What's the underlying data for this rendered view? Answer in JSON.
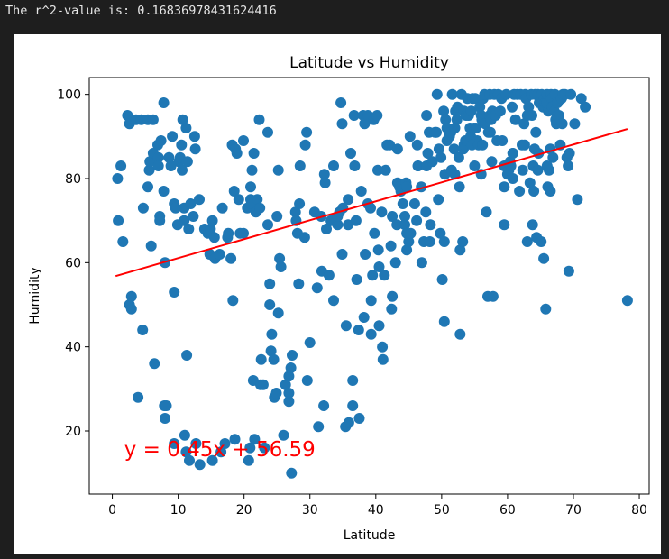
{
  "output": {
    "text": "The r^2-value is: 0.16836978431624416"
  },
  "chart_data": {
    "type": "scatter",
    "title": "Latitude vs Humidity",
    "xlabel": "Latitude",
    "ylabel": "Humidity",
    "xlim": [
      -3.5,
      81.5
    ],
    "ylim": [
      5,
      104
    ],
    "xticks": [
      0,
      10,
      20,
      30,
      40,
      50,
      60,
      70,
      80
    ],
    "yticks": [
      20,
      40,
      60,
      80,
      100
    ],
    "grid": false,
    "marker_color": "#1f77b4",
    "regression": {
      "slope": 0.45,
      "intercept": 56.59,
      "x_range": [
        0.5,
        78.2
      ],
      "color": "#ff0000",
      "equation_label": "y = 0.45x + 56.59",
      "label_anchor": [
        1.8,
        14
      ]
    },
    "points": [
      [
        0.8,
        80
      ],
      [
        0.9,
        70
      ],
      [
        1.3,
        83
      ],
      [
        1.6,
        65
      ],
      [
        2.3,
        95
      ],
      [
        2.6,
        93
      ],
      [
        2.6,
        50
      ],
      [
        2.9,
        52
      ],
      [
        2.9,
        49
      ],
      [
        3.6,
        94
      ],
      [
        3.9,
        28
      ],
      [
        4.4,
        94
      ],
      [
        4.6,
        44
      ],
      [
        4.7,
        73
      ],
      [
        5.4,
        94
      ],
      [
        5.4,
        78
      ],
      [
        5.6,
        82
      ],
      [
        5.7,
        84
      ],
      [
        5.9,
        64
      ],
      [
        6.2,
        94
      ],
      [
        6.2,
        86
      ],
      [
        6.4,
        36
      ],
      [
        6.9,
        88
      ],
      [
        7.0,
        85
      ],
      [
        7.0,
        83
      ],
      [
        7.2,
        71
      ],
      [
        7.2,
        70
      ],
      [
        7.4,
        89
      ],
      [
        7.8,
        98
      ],
      [
        7.8,
        77
      ],
      [
        7.9,
        26
      ],
      [
        8.0,
        23
      ],
      [
        8.0,
        60
      ],
      [
        8.2,
        26
      ],
      [
        8.6,
        85
      ],
      [
        8.9,
        83
      ],
      [
        9.1,
        90
      ],
      [
        9.4,
        17
      ],
      [
        9.4,
        74
      ],
      [
        9.4,
        53
      ],
      [
        9.6,
        73
      ],
      [
        9.9,
        69
      ],
      [
        10.1,
        84
      ],
      [
        10.3,
        85
      ],
      [
        10.5,
        88
      ],
      [
        10.6,
        82
      ],
      [
        10.7,
        94
      ],
      [
        10.9,
        73
      ],
      [
        10.9,
        70
      ],
      [
        11.0,
        19
      ],
      [
        11.2,
        92
      ],
      [
        11.2,
        15
      ],
      [
        11.3,
        38
      ],
      [
        11.4,
        84
      ],
      [
        11.6,
        68
      ],
      [
        11.7,
        13
      ],
      [
        11.9,
        74
      ],
      [
        12.3,
        71
      ],
      [
        12.5,
        90
      ],
      [
        12.6,
        87
      ],
      [
        12.7,
        17
      ],
      [
        13.2,
        75
      ],
      [
        13.3,
        12
      ],
      [
        14.0,
        68
      ],
      [
        14.5,
        67
      ],
      [
        14.8,
        62
      ],
      [
        14.9,
        68
      ],
      [
        15.2,
        70
      ],
      [
        15.2,
        13
      ],
      [
        15.5,
        66
      ],
      [
        15.6,
        61
      ],
      [
        16.3,
        62
      ],
      [
        16.5,
        15
      ],
      [
        16.7,
        73
      ],
      [
        17.1,
        17
      ],
      [
        17.5,
        66
      ],
      [
        17.6,
        67
      ],
      [
        18.0,
        61
      ],
      [
        18.2,
        88
      ],
      [
        18.3,
        51
      ],
      [
        18.5,
        77
      ],
      [
        18.6,
        18
      ],
      [
        18.7,
        87
      ],
      [
        18.9,
        86
      ],
      [
        19.2,
        75
      ],
      [
        19.4,
        67
      ],
      [
        19.9,
        67
      ],
      [
        19.9,
        89
      ],
      [
        20.5,
        73
      ],
      [
        20.7,
        13
      ],
      [
        20.9,
        16
      ],
      [
        21.0,
        75
      ],
      [
        21.0,
        78
      ],
      [
        21.1,
        74
      ],
      [
        21.2,
        82
      ],
      [
        21.4,
        32
      ],
      [
        21.5,
        86
      ],
      [
        21.6,
        18
      ],
      [
        21.8,
        72
      ],
      [
        22.0,
        75
      ],
      [
        22.3,
        94
      ],
      [
        22.4,
        73
      ],
      [
        22.5,
        31
      ],
      [
        22.6,
        37
      ],
      [
        22.9,
        31
      ],
      [
        23.1,
        16
      ],
      [
        23.6,
        91
      ],
      [
        23.6,
        69
      ],
      [
        23.9,
        50
      ],
      [
        23.9,
        55
      ],
      [
        24.1,
        39
      ],
      [
        24.2,
        43
      ],
      [
        24.5,
        37
      ],
      [
        24.6,
        28
      ],
      [
        24.9,
        29
      ],
      [
        25.0,
        71
      ],
      [
        25.2,
        48
      ],
      [
        25.2,
        82
      ],
      [
        25.4,
        61
      ],
      [
        25.6,
        59
      ],
      [
        26.0,
        19
      ],
      [
        26.3,
        31
      ],
      [
        26.8,
        27
      ],
      [
        26.8,
        29
      ],
      [
        26.8,
        33
      ],
      [
        27.1,
        35
      ],
      [
        27.2,
        10
      ],
      [
        27.3,
        38
      ],
      [
        27.8,
        72
      ],
      [
        27.9,
        70
      ],
      [
        28.1,
        67
      ],
      [
        28.3,
        55
      ],
      [
        28.4,
        74
      ],
      [
        28.5,
        83
      ],
      [
        29.2,
        66
      ],
      [
        29.3,
        88
      ],
      [
        29.5,
        91
      ],
      [
        29.6,
        32
      ],
      [
        30.0,
        41
      ],
      [
        30.7,
        72
      ],
      [
        31.1,
        54
      ],
      [
        31.3,
        21
      ],
      [
        31.7,
        71
      ],
      [
        31.8,
        58
      ],
      [
        32.1,
        26
      ],
      [
        32.2,
        81
      ],
      [
        32.3,
        79
      ],
      [
        32.5,
        68
      ],
      [
        32.9,
        57
      ],
      [
        33.2,
        70
      ],
      [
        33.6,
        83
      ],
      [
        33.6,
        51
      ],
      [
        34.2,
        69
      ],
      [
        34.2,
        71
      ],
      [
        34.5,
        72
      ],
      [
        34.7,
        98
      ],
      [
        34.9,
        93
      ],
      [
        34.9,
        62
      ],
      [
        35.0,
        73
      ],
      [
        35.4,
        21
      ],
      [
        35.5,
        45
      ],
      [
        35.8,
        75
      ],
      [
        35.8,
        69
      ],
      [
        35.9,
        22
      ],
      [
        36.2,
        86
      ],
      [
        36.5,
        32
      ],
      [
        36.5,
        26
      ],
      [
        36.7,
        95
      ],
      [
        36.8,
        83
      ],
      [
        37.0,
        70
      ],
      [
        37.1,
        56
      ],
      [
        37.4,
        44
      ],
      [
        37.5,
        23
      ],
      [
        37.8,
        77
      ],
      [
        38.1,
        95
      ],
      [
        38.2,
        47
      ],
      [
        38.3,
        93
      ],
      [
        38.4,
        62
      ],
      [
        38.8,
        95
      ],
      [
        38.8,
        74
      ],
      [
        39.2,
        73
      ],
      [
        39.3,
        51
      ],
      [
        39.3,
        43
      ],
      [
        39.5,
        57
      ],
      [
        39.7,
        94
      ],
      [
        39.8,
        67
      ],
      [
        40.2,
        95
      ],
      [
        40.3,
        82
      ],
      [
        40.4,
        63
      ],
      [
        40.5,
        59
      ],
      [
        40.5,
        45
      ],
      [
        40.9,
        72
      ],
      [
        41.0,
        40
      ],
      [
        41.1,
        37
      ],
      [
        41.3,
        57
      ],
      [
        41.5,
        82
      ],
      [
        41.7,
        88
      ],
      [
        42.1,
        88
      ],
      [
        42.3,
        64
      ],
      [
        42.4,
        49
      ],
      [
        42.5,
        52
      ],
      [
        42.5,
        71
      ],
      [
        43.0,
        60
      ],
      [
        43.2,
        69
      ],
      [
        43.3,
        87
      ],
      [
        43.3,
        79
      ],
      [
        43.6,
        78
      ],
      [
        43.8,
        77
      ],
      [
        44.1,
        74
      ],
      [
        44.4,
        71
      ],
      [
        44.4,
        69
      ],
      [
        44.6,
        79
      ],
      [
        44.7,
        78
      ],
      [
        44.7,
        67
      ],
      [
        44.7,
        63
      ],
      [
        45.0,
        65
      ],
      [
        45.2,
        90
      ],
      [
        45.3,
        67
      ],
      [
        45.9,
        74
      ],
      [
        46.2,
        70
      ],
      [
        46.3,
        88
      ],
      [
        46.4,
        83
      ],
      [
        46.4,
        83
      ],
      [
        46.9,
        78
      ],
      [
        47.0,
        60
      ],
      [
        47.3,
        65
      ],
      [
        47.6,
        72
      ],
      [
        47.7,
        83
      ],
      [
        47.7,
        95
      ],
      [
        47.9,
        86
      ],
      [
        48.1,
        91
      ],
      [
        48.2,
        65
      ],
      [
        48.3,
        69
      ],
      [
        48.6,
        84
      ],
      [
        49.0,
        91
      ],
      [
        49.2,
        91
      ],
      [
        49.3,
        100
      ],
      [
        49.5,
        75
      ],
      [
        49.6,
        87
      ],
      [
        49.8,
        67
      ],
      [
        49.9,
        85
      ],
      [
        50.1,
        56
      ],
      [
        50.3,
        96
      ],
      [
        50.4,
        65
      ],
      [
        50.4,
        46
      ],
      [
        50.5,
        81
      ],
      [
        50.6,
        94
      ],
      [
        50.8,
        89
      ],
      [
        50.8,
        92
      ],
      [
        51.1,
        90
      ],
      [
        51.2,
        90
      ],
      [
        51.4,
        91
      ],
      [
        51.5,
        82
      ],
      [
        51.6,
        100
      ],
      [
        51.9,
        87
      ],
      [
        52.0,
        81
      ],
      [
        52.0,
        92
      ],
      [
        52.1,
        96
      ],
      [
        52.3,
        94
      ],
      [
        52.4,
        97
      ],
      [
        52.6,
        85
      ],
      [
        52.7,
        78
      ],
      [
        52.8,
        63
      ],
      [
        52.8,
        43
      ],
      [
        53.0,
        100
      ],
      [
        53.2,
        65
      ],
      [
        53.3,
        87
      ],
      [
        53.4,
        88
      ],
      [
        53.4,
        96
      ],
      [
        53.6,
        89
      ],
      [
        53.7,
        95
      ],
      [
        53.8,
        89
      ],
      [
        53.9,
        99
      ],
      [
        54.1,
        95
      ],
      [
        54.3,
        92
      ],
      [
        54.4,
        90
      ],
      [
        54.5,
        96
      ],
      [
        54.6,
        88
      ],
      [
        54.7,
        99
      ],
      [
        54.9,
        92
      ],
      [
        55.0,
        83
      ],
      [
        55.1,
        99
      ],
      [
        55.2,
        92
      ],
      [
        55.4,
        89
      ],
      [
        55.6,
        88
      ],
      [
        55.8,
        97
      ],
      [
        56.0,
        81
      ],
      [
        56.0,
        95
      ],
      [
        56.1,
        94
      ],
      [
        56.2,
        88
      ],
      [
        56.3,
        99
      ],
      [
        56.5,
        100
      ],
      [
        56.6,
        93
      ],
      [
        56.8,
        72
      ],
      [
        57.0,
        52
      ],
      [
        57.1,
        91
      ],
      [
        57.3,
        100
      ],
      [
        57.3,
        95
      ],
      [
        57.4,
        91
      ],
      [
        57.5,
        94
      ],
      [
        57.6,
        84
      ],
      [
        57.7,
        96
      ],
      [
        57.8,
        52
      ],
      [
        58.0,
        100
      ],
      [
        58.2,
        95
      ],
      [
        58.4,
        89
      ],
      [
        58.6,
        100
      ],
      [
        58.9,
        96
      ],
      [
        59.1,
        99
      ],
      [
        59.2,
        89
      ],
      [
        59.5,
        78
      ],
      [
        59.5,
        69
      ],
      [
        59.5,
        83
      ],
      [
        59.8,
        100
      ],
      [
        60.0,
        81
      ],
      [
        60.2,
        82
      ],
      [
        60.4,
        84
      ],
      [
        60.5,
        83
      ],
      [
        60.7,
        97
      ],
      [
        60.8,
        86
      ],
      [
        60.8,
        80
      ],
      [
        60.8,
        86
      ],
      [
        61.0,
        100
      ],
      [
        61.2,
        94
      ],
      [
        61.5,
        100
      ],
      [
        61.8,
        77
      ],
      [
        62.0,
        100
      ],
      [
        62.2,
        88
      ],
      [
        62.3,
        82
      ],
      [
        62.5,
        93
      ],
      [
        62.6,
        88
      ],
      [
        62.7,
        100
      ],
      [
        62.8,
        99
      ],
      [
        63.0,
        95
      ],
      [
        63.0,
        65
      ],
      [
        63.2,
        97
      ],
      [
        63.4,
        79
      ],
      [
        63.6,
        100
      ],
      [
        63.7,
        95
      ],
      [
        63.8,
        69
      ],
      [
        63.9,
        83
      ],
      [
        64.0,
        77
      ],
      [
        64.1,
        87
      ],
      [
        64.2,
        100
      ],
      [
        64.3,
        91
      ],
      [
        64.4,
        66
      ],
      [
        64.6,
        82
      ],
      [
        64.6,
        100
      ],
      [
        64.7,
        86
      ],
      [
        64.8,
        98
      ],
      [
        65.1,
        65
      ],
      [
        65.2,
        100
      ],
      [
        65.4,
        97
      ],
      [
        65.5,
        61
      ],
      [
        65.6,
        99
      ],
      [
        65.7,
        98
      ],
      [
        65.8,
        49
      ],
      [
        65.9,
        98
      ],
      [
        66.0,
        83
      ],
      [
        66.0,
        100
      ],
      [
        66.1,
        78
      ],
      [
        66.2,
        96
      ],
      [
        66.3,
        82
      ],
      [
        66.5,
        77
      ],
      [
        66.5,
        87
      ],
      [
        66.6,
        100
      ],
      [
        66.7,
        99
      ],
      [
        66.8,
        97
      ],
      [
        66.8,
        97
      ],
      [
        66.9,
        85
      ],
      [
        67.1,
        96
      ],
      [
        67.2,
        100
      ],
      [
        67.3,
        94
      ],
      [
        67.4,
        93
      ],
      [
        67.6,
        98
      ],
      [
        67.8,
        95
      ],
      [
        67.8,
        94
      ],
      [
        68.0,
        88
      ],
      [
        68.2,
        99
      ],
      [
        68.3,
        93
      ],
      [
        68.4,
        100
      ],
      [
        68.7,
        100
      ],
      [
        69.0,
        85
      ],
      [
        69.2,
        83
      ],
      [
        69.3,
        58
      ],
      [
        69.4,
        86
      ],
      [
        69.6,
        100
      ],
      [
        70.2,
        93
      ],
      [
        70.6,
        75
      ],
      [
        71.2,
        99
      ],
      [
        71.8,
        97
      ],
      [
        78.2,
        51
      ]
    ]
  }
}
